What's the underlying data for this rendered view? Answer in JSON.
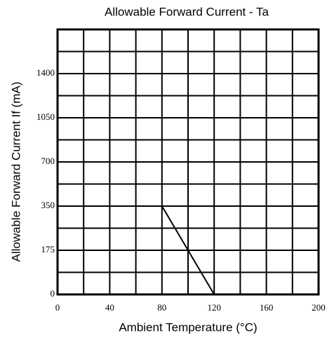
{
  "chart_data": {
    "type": "line",
    "title": "Allowable Forward Current - Ta",
    "xlabel": "Ambient Temperature (°C)",
    "ylabel": "Allowable Forward Current  If (mA)",
    "xlim": [
      0,
      200
    ],
    "xticks": [
      0,
      40,
      80,
      120,
      160,
      200
    ],
    "ylim": [
      0,
      1750
    ],
    "yticks": [
      0,
      175,
      350,
      700,
      1050,
      1400
    ],
    "grid": true,
    "x": [
      80,
      120
    ],
    "series": [
      {
        "color": "#000000",
        "values": [
          350,
          0
        ]
      }
    ]
  }
}
